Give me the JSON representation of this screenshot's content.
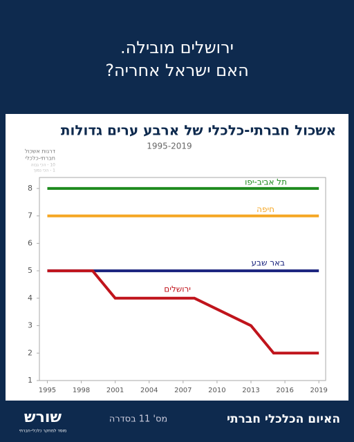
{
  "header": {
    "lines": [
      "ירושלים מובילה.",
      "האם ישראל אחריה?"
    ]
  },
  "chart_data": {
    "type": "line",
    "title": "אשכול חברתי-כלכלי של ארבע ערים גדולות",
    "subtitle": "1995-2019",
    "y_label": [
      "דרגות אשכול",
      "חברתי-כלכלי"
    ],
    "y_note": [
      "10 - הכי גבוה",
      "1 - הכי נמוך"
    ],
    "xlim": [
      1994.3,
      2019.6
    ],
    "ylim": [
      1,
      8.4
    ],
    "xticks": [
      1995,
      1998,
      2001,
      2004,
      2007,
      2010,
      2013,
      2016,
      2019
    ],
    "yticks": [
      1,
      2,
      3,
      4,
      5,
      6,
      7,
      8
    ],
    "series": [
      {
        "name": "תל אביב-יפו",
        "color": "#1e8a1e",
        "x": [
          1995,
          2019
        ],
        "values": [
          8,
          8
        ]
      },
      {
        "name": "חיפה",
        "color": "#f5a623",
        "x": [
          1995,
          2019
        ],
        "values": [
          7,
          7
        ]
      },
      {
        "name": "באר שבע",
        "color": "#1a237e",
        "x": [
          1995,
          2019
        ],
        "values": [
          5,
          5
        ]
      },
      {
        "name": "ירושלים",
        "color": "#c0141c",
        "x": [
          1995,
          1999,
          2001,
          2008,
          2013,
          2015,
          2019
        ],
        "values": [
          5,
          5,
          4,
          4,
          3,
          2,
          2
        ]
      }
    ]
  },
  "footer": {
    "series_title": "האיום הכלכלי חברתי",
    "issue": "מס' 11 בסדרה",
    "logo": "שורש",
    "logo_sub": "מוסד למחקר כלכלי-חברתי"
  }
}
